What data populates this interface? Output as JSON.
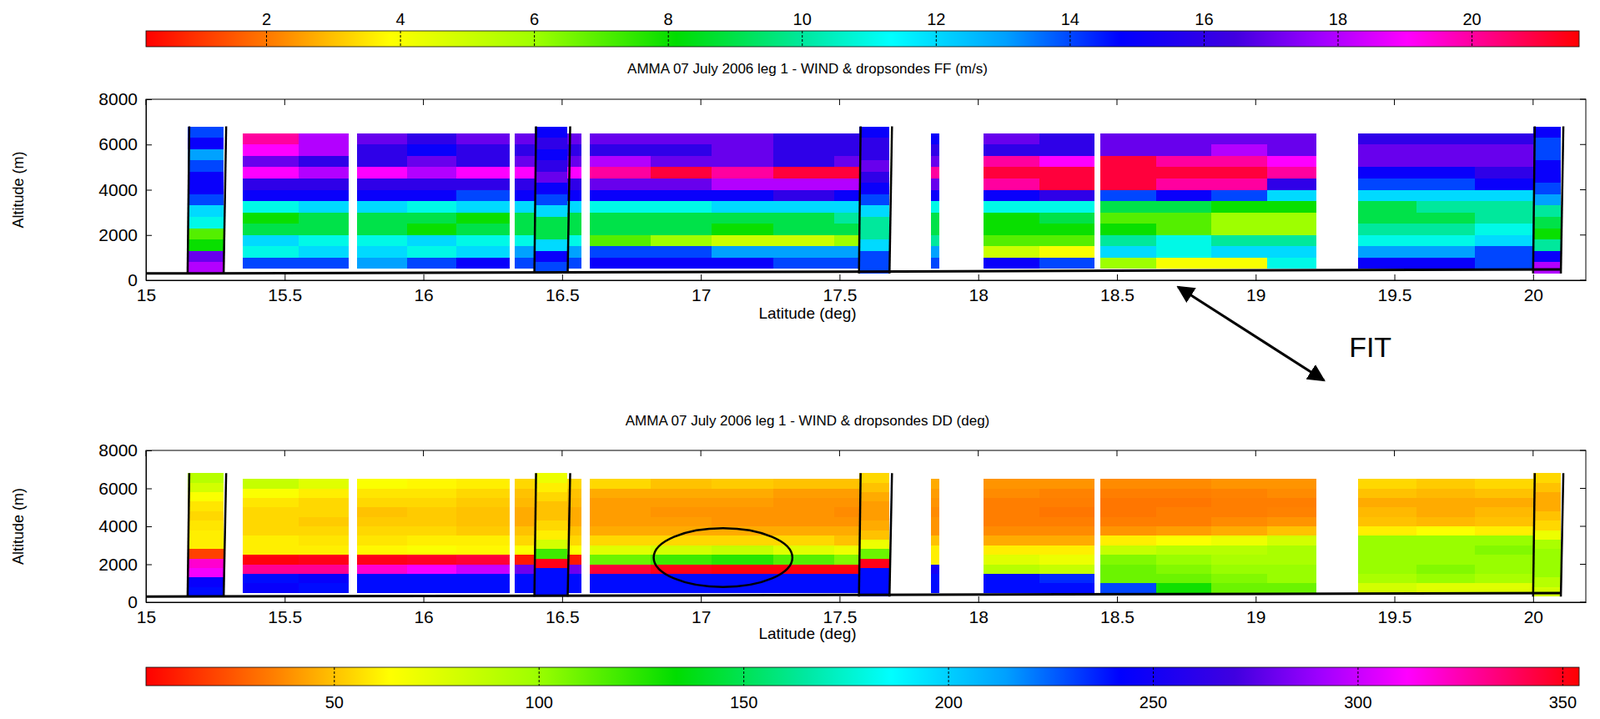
{
  "chart_data": [
    {
      "type": "heatmap",
      "title": "AMMA 07 July 2006 leg 1 - WIND & dropsondes FF (m/s)",
      "xlabel": "Latitude (deg)",
      "ylabel": "Altitude (m)",
      "xlim": [
        15,
        20.19
      ],
      "ylim": [
        0,
        8000
      ],
      "xticks": [
        15,
        15.5,
        16,
        16.5,
        17,
        17.5,
        18,
        18.5,
        19,
        19.5,
        20
      ],
      "yticks": [
        0,
        2000,
        4000,
        6000,
        8000
      ],
      "x": [
        15.35,
        15.55,
        15.73,
        15.76,
        15.94,
        16.12,
        16.31,
        16.33,
        16.57,
        16.6,
        16.82,
        17.04,
        17.26,
        17.48,
        17.68,
        17.83,
        17.86,
        18.02,
        18.22,
        18.42,
        18.44,
        18.64,
        18.84,
        19.04,
        19.22,
        19.37,
        19.58,
        19.79,
        20.0
      ],
      "y": [
        500,
        1000,
        1500,
        2000,
        2500,
        3000,
        3500,
        4000,
        4500,
        5000,
        5500,
        6000,
        6500
      ],
      "z": [
        [
          14,
          14,
          null,
          13,
          14,
          15,
          null,
          14,
          null,
          15,
          15,
          15,
          14,
          14,
          null,
          14,
          null,
          15,
          14,
          null,
          6,
          4,
          4,
          11,
          null,
          15,
          15,
          14
        ],
        [
          11,
          12,
          null,
          12,
          11,
          12,
          null,
          13,
          null,
          14,
          14,
          13,
          13,
          13,
          null,
          13,
          null,
          5,
          4,
          null,
          12,
          11,
          12,
          12,
          null,
          13,
          13,
          14
        ],
        [
          12,
          11,
          null,
          11,
          12,
          11,
          null,
          11,
          null,
          7,
          6,
          5,
          5,
          6,
          null,
          10,
          null,
          7,
          7,
          null,
          10,
          11,
          10,
          10,
          null,
          11,
          11,
          12
        ],
        [
          9,
          9,
          null,
          9,
          8,
          9,
          null,
          9,
          null,
          9,
          9,
          8,
          9,
          9,
          null,
          9,
          null,
          8,
          8,
          null,
          8,
          7,
          6,
          6,
          null,
          10,
          10,
          11
        ],
        [
          8,
          9,
          null,
          9,
          9,
          8,
          null,
          9,
          null,
          9,
          9,
          9,
          9,
          10,
          null,
          9,
          null,
          8,
          9,
          null,
          7,
          7,
          6,
          6,
          null,
          9,
          9,
          10
        ],
        [
          11,
          12,
          null,
          12,
          11,
          12,
          null,
          12,
          null,
          11,
          11,
          12,
          12,
          12,
          null,
          11,
          null,
          11,
          11,
          null,
          9,
          9,
          8,
          8,
          null,
          9,
          10,
          10
        ],
        [
          15,
          15,
          null,
          15,
          15,
          14,
          null,
          15,
          null,
          15,
          15,
          15,
          16,
          15,
          null,
          15,
          null,
          15,
          16,
          null,
          14,
          15,
          14,
          12,
          null,
          12,
          12,
          12
        ],
        [
          16,
          16,
          null,
          16,
          16,
          16,
          null,
          16,
          null,
          17,
          17,
          18,
          18,
          18,
          null,
          17,
          null,
          20,
          21,
          null,
          21,
          20,
          20,
          16,
          null,
          14,
          14,
          15
        ],
        [
          19,
          18,
          null,
          19,
          18,
          19,
          null,
          19,
          null,
          20,
          21,
          20,
          21,
          21,
          null,
          20,
          null,
          21,
          21,
          null,
          21,
          21,
          21,
          20,
          null,
          15,
          15,
          16
        ],
        [
          17,
          16,
          null,
          16,
          17,
          16,
          null,
          17,
          null,
          18,
          17,
          17,
          16,
          17,
          null,
          17,
          null,
          20,
          19,
          null,
          21,
          20,
          20,
          19,
          null,
          17,
          17,
          17
        ],
        [
          19,
          18,
          null,
          16,
          15,
          16,
          null,
          16,
          null,
          16,
          16,
          17,
          16,
          16,
          null,
          16,
          null,
          16,
          16,
          null,
          17,
          17,
          18,
          17,
          null,
          17,
          17,
          17
        ],
        [
          20,
          18,
          null,
          17,
          16,
          17,
          null,
          17,
          null,
          17,
          17,
          17,
          16,
          16,
          null,
          15,
          null,
          17,
          16,
          null,
          17,
          17,
          17,
          17,
          null,
          16,
          16,
          16
        ]
      ],
      "colorbar": {
        "range": [
          0.2,
          21.6
        ],
        "ticks": [
          2,
          4,
          6,
          8,
          10,
          12,
          14,
          16,
          18,
          20
        ]
      },
      "dropsonde_y": [
        300,
        800,
        1300,
        1800,
        2300,
        2800,
        3300,
        3800,
        4300,
        4800,
        5300,
        5800,
        6300,
        6800
      ],
      "dropsondes": [
        {
          "x": [
            15.15,
            15.28
          ],
          "values": [
            18,
            17,
            8,
            7,
            11,
            12,
            14,
            15,
            15,
            14,
            13,
            15,
            14
          ]
        },
        {
          "x": [
            16.4,
            16.52
          ],
          "values": [
            14,
            15,
            12,
            9,
            9,
            12,
            14,
            15,
            17,
            16,
            15,
            16,
            15
          ]
        },
        {
          "x": [
            17.57,
            17.68
          ],
          "values": [
            14,
            14,
            12,
            10,
            10,
            12,
            14,
            15,
            16,
            17,
            16,
            16,
            15
          ]
        },
        {
          "x": [
            20.0,
            20.1
          ],
          "values": [
            18,
            15,
            10,
            8,
            9,
            10,
            13,
            14,
            15,
            15,
            14,
            14,
            15
          ]
        }
      ],
      "ground": {
        "x": [
          15,
          17.5,
          18.7,
          20.1
        ],
        "y": [
          300,
          380,
          430,
          480
        ]
      },
      "annotation": {
        "text": "FIT",
        "x": 18.72
      }
    },
    {
      "type": "heatmap",
      "title": "AMMA 07 July 2006 leg 1 - WIND & dropsondes DD (deg)",
      "xlabel": "Latitude (deg)",
      "ylabel": "Altitude (m)",
      "xlim": [
        15,
        20.19
      ],
      "ylim": [
        0,
        8000
      ],
      "xticks": [
        15,
        15.5,
        16,
        16.5,
        17,
        17.5,
        18,
        18.5,
        19,
        19.5,
        20
      ],
      "yticks": [
        0,
        2000,
        4000,
        6000,
        8000
      ],
      "x": [
        15.35,
        15.55,
        15.73,
        15.76,
        15.94,
        16.12,
        16.31,
        16.33,
        16.57,
        16.6,
        16.82,
        17.04,
        17.26,
        17.48,
        17.68,
        17.83,
        17.86,
        18.02,
        18.22,
        18.42,
        18.44,
        18.64,
        18.84,
        19.04,
        19.22,
        19.37,
        19.58,
        19.79,
        20.0
      ],
      "y": [
        500,
        1000,
        1500,
        2000,
        2500,
        3000,
        3500,
        4000,
        4500,
        5000,
        5500,
        6000,
        6500
      ],
      "z": [
        [
          245,
          240,
          null,
          240,
          240,
          240,
          null,
          240,
          null,
          240,
          240,
          240,
          240,
          240,
          null,
          240,
          null,
          240,
          240,
          null,
          230,
          130,
          110,
          110,
          null,
          80,
          75,
          75
        ],
        [
          240,
          245,
          null,
          240,
          240,
          240,
          null,
          240,
          null,
          240,
          240,
          240,
          240,
          240,
          null,
          240,
          null,
          240,
          235,
          null,
          110,
          110,
          105,
          100,
          null,
          95,
          100,
          95
        ],
        [
          330,
          330,
          null,
          320,
          310,
          300,
          null,
          280,
          null,
          345,
          350,
          352,
          352,
          352,
          null,
          250,
          null,
          90,
          85,
          null,
          110,
          105,
          100,
          100,
          null,
          100,
          105,
          100
        ],
        [
          352,
          350,
          null,
          350,
          348,
          345,
          null,
          10,
          null,
          110,
          120,
          125,
          115,
          105,
          null,
          60,
          null,
          75,
          70,
          null,
          105,
          100,
          95,
          95,
          null,
          100,
          100,
          100
        ],
        [
          60,
          60,
          null,
          62,
          65,
          62,
          null,
          65,
          null,
          75,
          80,
          85,
          75,
          70,
          null,
          60,
          null,
          60,
          60,
          null,
          85,
          90,
          90,
          95,
          null,
          100,
          100,
          105
        ],
        [
          60,
          58,
          null,
          58,
          60,
          60,
          null,
          55,
          null,
          55,
          55,
          55,
          55,
          50,
          null,
          50,
          null,
          45,
          45,
          null,
          60,
          65,
          70,
          80,
          null,
          100,
          100,
          100
        ],
        [
          55,
          55,
          null,
          55,
          55,
          52,
          null,
          50,
          null,
          45,
          45,
          45,
          45,
          45,
          null,
          40,
          null,
          38,
          38,
          null,
          40,
          42,
          45,
          50,
          null,
          60,
          65,
          60
        ],
        [
          55,
          52,
          null,
          52,
          52,
          50,
          null,
          45,
          null,
          42,
          42,
          40,
          40,
          40,
          null,
          40,
          null,
          35,
          35,
          null,
          35,
          35,
          38,
          40,
          null,
          50,
          48,
          50
        ],
        [
          55,
          55,
          null,
          50,
          52,
          50,
          null,
          45,
          null,
          42,
          40,
          40,
          40,
          38,
          null,
          38,
          null,
          35,
          33,
          null,
          33,
          35,
          35,
          36,
          null,
          48,
          45,
          48
        ],
        [
          58,
          55,
          null,
          55,
          55,
          52,
          null,
          48,
          null,
          42,
          42,
          42,
          40,
          40,
          null,
          40,
          null,
          35,
          35,
          null,
          33,
          33,
          35,
          35,
          null,
          45,
          45,
          45
        ],
        [
          65,
          60,
          null,
          58,
          58,
          55,
          null,
          50,
          null,
          45,
          45,
          45,
          42,
          42,
          null,
          42,
          null,
          38,
          36,
          null,
          35,
          35,
          36,
          38,
          null,
          50,
          48,
          50
        ],
        [
          85,
          75,
          null,
          65,
          62,
          60,
          null,
          55,
          null,
          55,
          50,
          52,
          50,
          50,
          null,
          45,
          null,
          40,
          40,
          null,
          38,
          38,
          40,
          40,
          null,
          55,
          52,
          55
        ]
      ],
      "colorbar": {
        "range": [
          4,
          354
        ],
        "ticks": [
          50,
          100,
          150,
          200,
          250,
          300,
          350
        ]
      },
      "dropsonde_y": [
        300,
        800,
        1300,
        1800,
        2300,
        2800,
        3300,
        3800,
        4300,
        4800,
        5300,
        5800,
        6300,
        6800
      ],
      "dropsondes": [
        {
          "x": [
            15.15,
            15.28
          ],
          "values": [
            240,
            245,
            310,
            320,
            20,
            60,
            60,
            58,
            55,
            58,
            65,
            80,
            90
          ]
        },
        {
          "x": [
            16.4,
            16.52
          ],
          "values": [
            240,
            240,
            240,
            350,
            120,
            80,
            60,
            55,
            50,
            50,
            55,
            60,
            70
          ]
        },
        {
          "x": [
            17.57,
            17.68
          ],
          "values": [
            240,
            240,
            240,
            350,
            110,
            70,
            50,
            45,
            42,
            42,
            45,
            50,
            55
          ]
        },
        {
          "x": [
            20.0,
            20.1
          ],
          "values": [
            80,
            90,
            100,
            100,
            100,
            95,
            70,
            55,
            50,
            45,
            45,
            50,
            55
          ]
        }
      ],
      "ground": {
        "x": [
          15,
          17.5,
          18.7,
          20.1
        ],
        "y": [
          300,
          380,
          430,
          480
        ]
      },
      "ellipse": {
        "center": [
          17.08,
          2350
        ],
        "radius": [
          0.25,
          1550
        ]
      }
    }
  ]
}
